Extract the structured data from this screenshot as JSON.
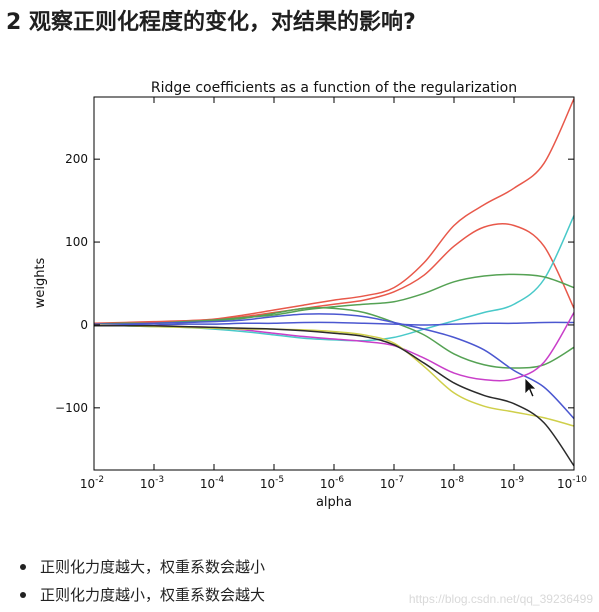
{
  "page": {
    "heading": "2 观察正则化程度的变化，对结果的影响?",
    "bullets": [
      "正则化力度越大，权重系数会越小",
      "正则化力度越小，权重系数会越大"
    ],
    "watermark": "https://blog.csdn.net/qq_39236499"
  },
  "chart_data": {
    "type": "line",
    "title": "Ridge coefficients as a function of the regularization",
    "xlabel": "alpha",
    "ylabel": "weights",
    "x_scale": "log",
    "x_reversed": true,
    "xlim": [
      0.01,
      1e-10
    ],
    "ylim": [
      -175,
      275
    ],
    "grid": false,
    "legend": "none",
    "xticks": [
      {
        "value": 0.01,
        "base": "10",
        "exp": "-2"
      },
      {
        "value": 0.001,
        "base": "10",
        "exp": "-3"
      },
      {
        "value": 0.0001,
        "base": "10",
        "exp": "-4"
      },
      {
        "value": 1e-05,
        "base": "10",
        "exp": "-5"
      },
      {
        "value": 1e-06,
        "base": "10",
        "exp": "-6"
      },
      {
        "value": 1e-07,
        "base": "10",
        "exp": "-7"
      },
      {
        "value": 1e-08,
        "base": "10",
        "exp": "-8"
      },
      {
        "value": 1e-09,
        "base": "10",
        "exp": "-9"
      },
      {
        "value": 1e-10,
        "base": "10",
        "exp": "-10"
      }
    ],
    "yticks": [
      {
        "value": 200,
        "label": "200"
      },
      {
        "value": 100,
        "label": "100"
      },
      {
        "value": 0,
        "label": "0"
      },
      {
        "value": -100,
        "label": "−100"
      }
    ],
    "x": [
      0.01,
      0.0031623,
      0.001,
      0.00031623,
      0.0001,
      3.1623e-05,
      1e-05,
      3.1623e-06,
      1e-06,
      3.1623e-07,
      1e-07,
      3.1623e-08,
      1e-08,
      3.1623e-09,
      1e-09,
      3.1623e-10,
      1e-10
    ],
    "series": [
      {
        "color": "#e8584a",
        "values": [
          2,
          3,
          4,
          5,
          7,
          12,
          18,
          24,
          30,
          35,
          45,
          75,
          120,
          145,
          165,
          195,
          273
        ]
      },
      {
        "color": "#e8584a",
        "values": [
          1,
          2,
          3,
          4,
          6,
          10,
          15,
          20,
          25,
          30,
          40,
          60,
          95,
          118,
          120,
          95,
          20
        ]
      },
      {
        "color": "#49c9c9",
        "values": [
          0,
          -1,
          -2,
          -3,
          -5,
          -8,
          -12,
          -16,
          -18,
          -19,
          -15,
          -5,
          5,
          15,
          25,
          55,
          132
        ]
      },
      {
        "color": "#55a254",
        "values": [
          0,
          1,
          2,
          4,
          6,
          9,
          12,
          18,
          22,
          25,
          28,
          38,
          52,
          59,
          61,
          58,
          45
        ]
      },
      {
        "color": "#55a254",
        "values": [
          1,
          2,
          2,
          3,
          5,
          8,
          14,
          20,
          20,
          15,
          3,
          -12,
          -35,
          -48,
          -52,
          -48,
          -27
        ]
      },
      {
        "color": "#4b57d0",
        "values": [
          1,
          1,
          2,
          3,
          4,
          6,
          10,
          13,
          13,
          10,
          3,
          -5,
          -15,
          -30,
          -55,
          -75,
          -113
        ]
      },
      {
        "color": "#4b57d0",
        "values": [
          0,
          0,
          0,
          1,
          1,
          2,
          2,
          3,
          3,
          2,
          1,
          0,
          1,
          2,
          2,
          3,
          3
        ]
      },
      {
        "color": "#c93fc9",
        "values": [
          0,
          -1,
          -1,
          -2,
          -3,
          -6,
          -10,
          -14,
          -17,
          -20,
          -25,
          -40,
          -58,
          -66,
          -65,
          -45,
          15
        ]
      },
      {
        "color": "#cfcf4a",
        "values": [
          0,
          -1,
          -2,
          -3,
          -4,
          -5,
          -5,
          -6,
          -8,
          -12,
          -22,
          -50,
          -82,
          -98,
          -105,
          -112,
          -122
        ]
      },
      {
        "color": "#2b2b2b",
        "values": [
          -1,
          -1,
          -1,
          -2,
          -3,
          -4,
          -5,
          -7,
          -10,
          -14,
          -24,
          -46,
          -70,
          -85,
          -95,
          -118,
          -170
        ]
      }
    ]
  }
}
